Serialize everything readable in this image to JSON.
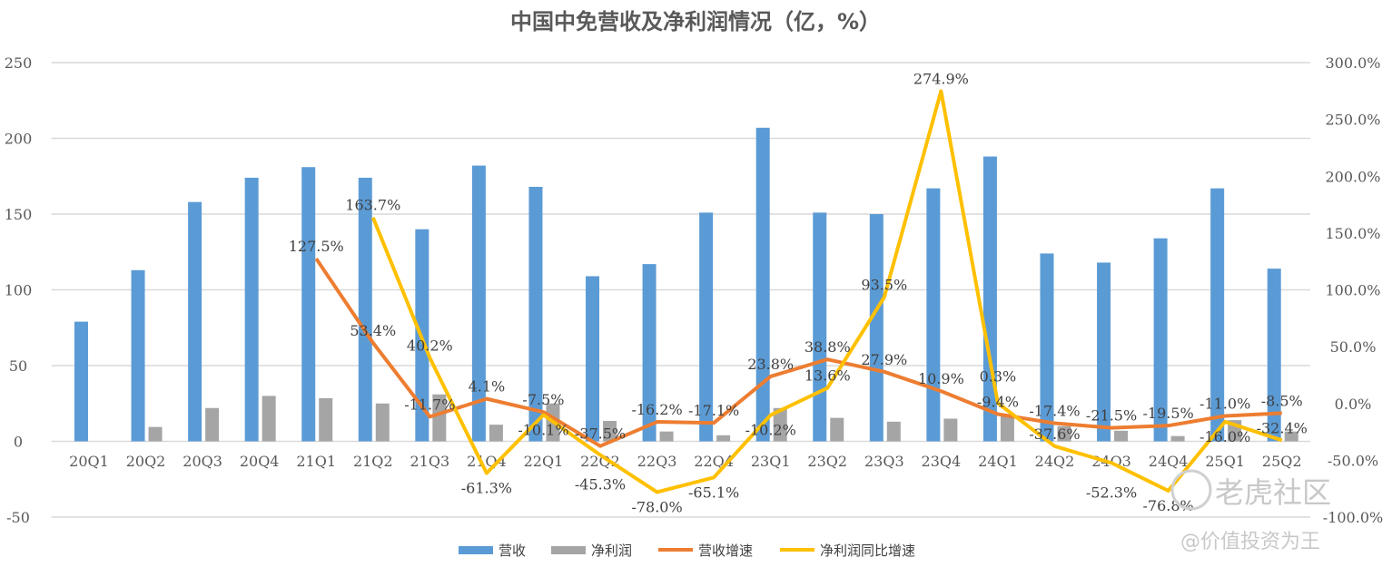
{
  "chart_data": {
    "type": "bar+line",
    "title": "中国中免营收及净利润情况（亿，%）",
    "categories": [
      "20Q1",
      "20Q2",
      "20Q3",
      "20Q4",
      "21Q1",
      "21Q2",
      "21Q3",
      "21Q4",
      "22Q1",
      "22Q2",
      "22Q3",
      "22Q4",
      "23Q1",
      "23Q2",
      "23Q3",
      "23Q4",
      "24Q1",
      "24Q2",
      "24Q3",
      "24Q4",
      "25Q1",
      "25Q2"
    ],
    "left_axis": {
      "ylim": [
        -50,
        250
      ],
      "ticks": [
        -50,
        0,
        50,
        100,
        150,
        200,
        250
      ]
    },
    "right_axis": {
      "ylim": [
        -100,
        300
      ],
      "ticks": [
        "-100.0%",
        "-50.0%",
        "0.0%",
        "50.0%",
        "100.0%",
        "150.0%",
        "200.0%",
        "250.0%",
        "300.0%"
      ],
      "tick_values": [
        -100,
        -50,
        0,
        50,
        100,
        150,
        200,
        250,
        300
      ]
    },
    "grid": true,
    "legend": "bottom",
    "series": [
      {
        "name": "营收",
        "type": "bar",
        "axis": "left",
        "color": "#5B9BD5",
        "values": [
          79,
          113,
          158,
          174,
          181,
          174,
          140,
          182,
          168,
          109,
          117,
          151,
          207,
          151,
          150,
          167,
          188,
          124,
          118,
          134,
          167,
          114
        ]
      },
      {
        "name": "净利润",
        "type": "bar",
        "axis": "left",
        "color": "#A5A5A5",
        "values": [
          0,
          9.5,
          22,
          30,
          28.5,
          25,
          31,
          11,
          25,
          13.5,
          6.5,
          4,
          22,
          15.5,
          13,
          15,
          18,
          10,
          7,
          3.5,
          14,
          6.5
        ]
      },
      {
        "name": "营收增速",
        "type": "line",
        "axis": "right",
        "color": "#ED7D31",
        "values": [
          null,
          null,
          null,
          null,
          127.5,
          53.4,
          -11.7,
          4.1,
          -7.5,
          -37.5,
          -16.2,
          -17.1,
          23.8,
          38.8,
          27.9,
          10.9,
          -9.4,
          -17.4,
          -21.5,
          -19.5,
          -11.0,
          -8.5
        ]
      },
      {
        "name": "净利润同比增速",
        "type": "line",
        "axis": "right",
        "color": "#FFC000",
        "values": [
          null,
          null,
          null,
          null,
          null,
          163.7,
          40.2,
          -61.3,
          -10.1,
          -45.3,
          -78.0,
          -65.1,
          -10.2,
          13.6,
          93.5,
          274.9,
          0.3,
          -37.6,
          -52.3,
          -76.8,
          -16.0,
          -32.4
        ]
      }
    ]
  },
  "watermark": {
    "logo": "老虎社区",
    "author": "@价值投资为王"
  }
}
